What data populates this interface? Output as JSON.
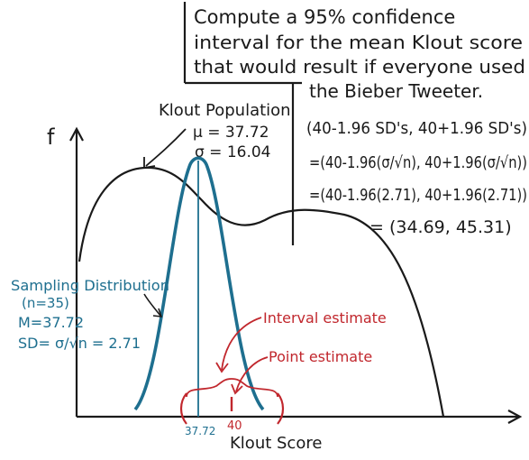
{
  "colors": {
    "ink": "#1a1a1a",
    "sampling": "#1e6f8f",
    "estimate": "#c1272d"
  },
  "task": {
    "line1": "Compute a 95% confidence",
    "line2": "interval for the mean Klout score",
    "line3": "that would result if everyone used",
    "line4": "the Bieber Tweeter."
  },
  "work": {
    "step1": "(40-1.96 SD's, 40+1.96 SD's)",
    "step2": "=(40-1.96(σ/√n), 40+1.96(σ/√n))",
    "step3": "=(40-1.96(2.71), 40+1.96(2.71))",
    "step4": "= (34.69, 45.31)"
  },
  "population": {
    "title": "Klout Population",
    "mu": "μ = 37.72",
    "sigma": "σ = 16.04"
  },
  "sampling": {
    "title": "Sampling Distribution",
    "n": "(n=35)",
    "mean": "M=37.72",
    "sd": "SD= σ/√n = 2.71"
  },
  "axes": {
    "y_label": "f",
    "x_label": "Klout Score",
    "tick_mean": "37.72",
    "tick_40": "40"
  },
  "annotations": {
    "interval": "Interval estimate",
    "point": "Point estimate"
  }
}
